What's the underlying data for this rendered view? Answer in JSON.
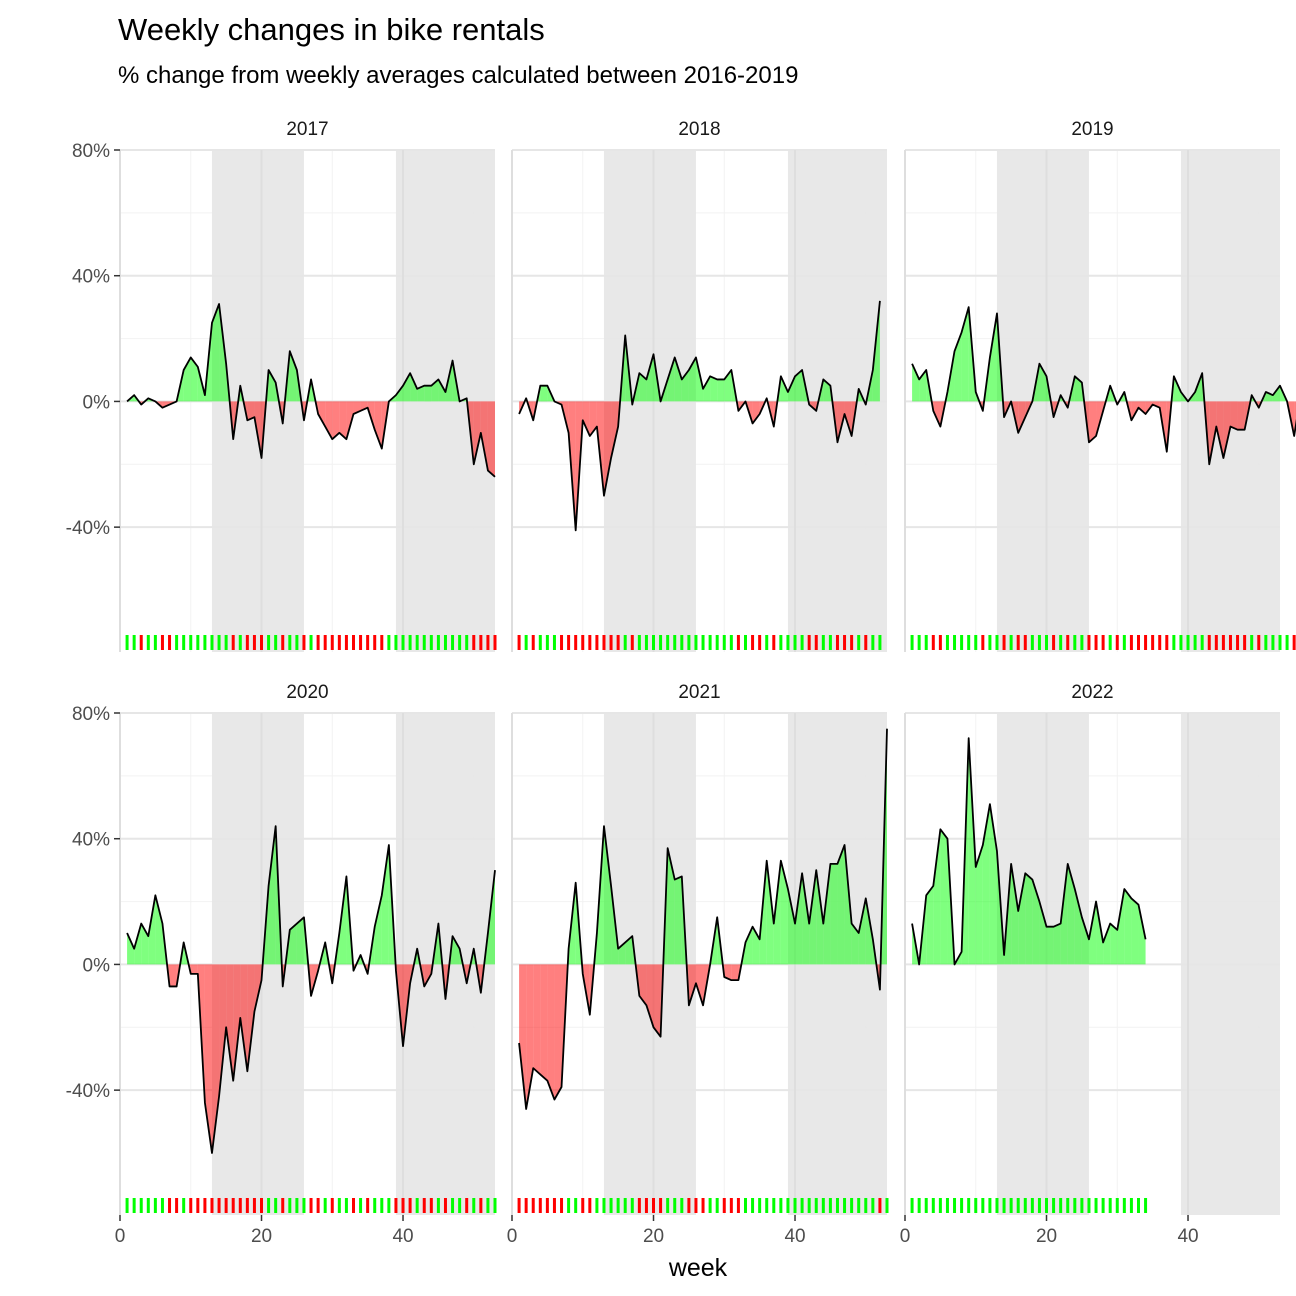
{
  "chart_data": {
    "type": "area",
    "title": "Weekly changes in bike rentals",
    "subtitle": "% change from weekly averages calculated between 2016-2019",
    "xlabel": "week",
    "ylabel": "",
    "xlim": [
      0,
      53
    ],
    "ylim": [
      -60,
      80
    ],
    "x_ticks": [
      0,
      20,
      40
    ],
    "y_ticks": [
      -40,
      0,
      40,
      80
    ],
    "y_tick_labels": [
      "-40%",
      "0%",
      "40%",
      "80%"
    ],
    "shaded_week_ranges": [
      [
        13,
        26
      ],
      [
        39,
        53
      ]
    ],
    "colors": {
      "positive": "#00ff00",
      "negative": "#ff0000",
      "shade": "#e6e6e6",
      "line": "#000000"
    },
    "grid": true,
    "panels": [
      {
        "label": "2017",
        "values": [
          0,
          2,
          -1,
          1,
          0,
          -2,
          -1,
          0,
          10,
          14,
          11,
          2,
          25,
          31,
          12,
          -12,
          5,
          -6,
          -5,
          -18,
          10,
          6,
          -7,
          16,
          10,
          -6,
          7,
          -4,
          -8,
          -12,
          -10,
          -12,
          -4,
          -3,
          -2,
          -9,
          -15,
          0,
          2,
          5,
          9,
          4,
          5,
          5,
          7,
          3,
          13,
          0,
          1,
          -20,
          -10,
          -22,
          -24
        ]
      },
      {
        "label": "2018",
        "values": [
          -4,
          1,
          -6,
          5,
          5,
          0,
          -1,
          -10,
          -41,
          -6,
          -11,
          -8,
          -30,
          -18,
          -8,
          21,
          -1,
          9,
          7,
          15,
          0,
          7,
          14,
          7,
          10,
          14,
          4,
          8,
          7,
          7,
          10,
          -3,
          0,
          -7,
          -4,
          1,
          -8,
          8,
          3,
          8,
          10,
          -1,
          -3,
          7,
          5,
          -13,
          -4,
          -11,
          4,
          -1,
          10,
          32
        ]
      },
      {
        "label": "2019",
        "values": [
          12,
          7,
          10,
          -3,
          -8,
          3,
          16,
          22,
          30,
          3,
          -3,
          14,
          28,
          -5,
          0,
          -10,
          -5,
          0,
          12,
          8,
          -5,
          2,
          -2,
          8,
          6,
          -13,
          -11,
          -3,
          5,
          -1,
          3,
          -6,
          -2,
          -4,
          -1,
          -2,
          -16,
          8,
          3,
          0,
          3,
          9,
          -20,
          -8,
          -18,
          -8,
          -9,
          -9,
          2,
          -2,
          3,
          2,
          5,
          0,
          -11,
          3,
          5
        ]
      },
      {
        "label": "2020",
        "values": [
          10,
          5,
          13,
          9,
          22,
          13,
          -7,
          -7,
          7,
          -3,
          -3,
          -44,
          -60,
          -42,
          -20,
          -37,
          -17,
          -34,
          -15,
          -5,
          25,
          44,
          -7,
          11,
          13,
          15,
          -10,
          -2,
          7,
          -6,
          10,
          28,
          -2,
          3,
          -3,
          12,
          22,
          38,
          -2,
          -26,
          -6,
          5,
          -7,
          -3,
          13,
          -11,
          9,
          5,
          -6,
          5,
          -9,
          10,
          30
        ]
      },
      {
        "label": "2021",
        "values": [
          -25,
          -46,
          -33,
          -35,
          -37,
          -43,
          -39,
          5,
          26,
          -3,
          -16,
          10,
          44,
          25,
          5,
          7,
          9,
          -10,
          -13,
          -20,
          -23,
          37,
          27,
          28,
          -13,
          -6,
          -13,
          0,
          15,
          -4,
          -5,
          -5,
          7,
          12,
          8,
          33,
          13,
          33,
          24,
          13,
          29,
          13,
          30,
          13,
          32,
          32,
          38,
          13,
          10,
          21,
          8,
          -8,
          75
        ]
      },
      {
        "label": "2022",
        "values": [
          13,
          0,
          22,
          25,
          43,
          40,
          0,
          4,
          72,
          31,
          38,
          51,
          36,
          3,
          32,
          17,
          29,
          27,
          20,
          12,
          12,
          13,
          32,
          24,
          15,
          8,
          20,
          7,
          13,
          11,
          24,
          21,
          19,
          8
        ]
      }
    ]
  }
}
